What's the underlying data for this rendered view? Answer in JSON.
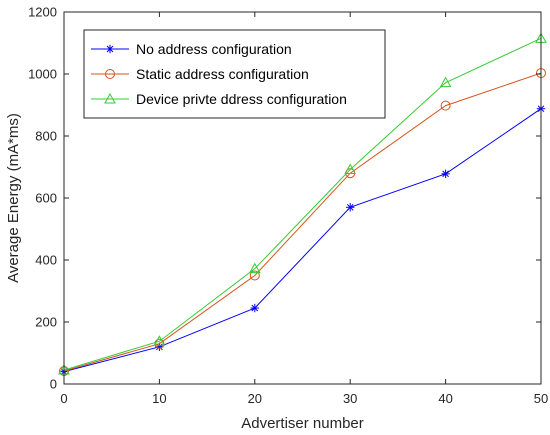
{
  "chart_data": {
    "type": "line",
    "title": "",
    "xlabel": "Advertiser number",
    "ylabel": "Average Energy (mA*ms)",
    "x": [
      0,
      10,
      20,
      30,
      40,
      50
    ],
    "xlim": [
      0,
      50
    ],
    "ylim": [
      0,
      1200
    ],
    "xticks": [
      "0",
      "10",
      "20",
      "30",
      "40",
      "50"
    ],
    "yticks": [
      "0",
      "200",
      "400",
      "600",
      "800",
      "1000",
      "1200"
    ],
    "grid": false,
    "legend_position": "top-left",
    "series": [
      {
        "name": "No address configuration",
        "marker": "asterisk",
        "color": "#0000ff",
        "values": [
          40,
          120,
          245,
          570,
          678,
          888
        ]
      },
      {
        "name": "Static address configuration",
        "marker": "circle",
        "color": "#d95319",
        "values": [
          42,
          130,
          350,
          680,
          898,
          1003
        ]
      },
      {
        "name": "Device privte ddress configuration",
        "marker": "triangle",
        "color": "#33cc33",
        "values": [
          45,
          138,
          372,
          692,
          972,
          1115
        ]
      }
    ]
  }
}
